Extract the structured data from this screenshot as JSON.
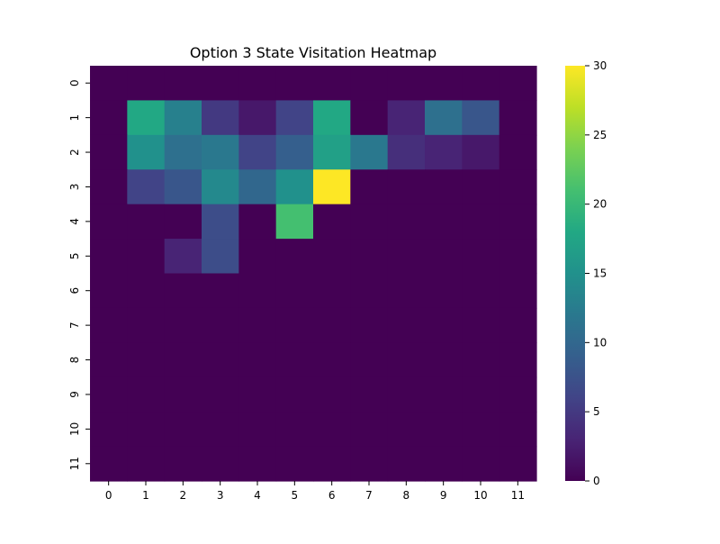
{
  "chart_data": {
    "type": "heatmap",
    "title": "Option 3 State Visitation Heatmap",
    "xlabel": "",
    "ylabel": "",
    "x_ticks": [
      "0",
      "1",
      "2",
      "3",
      "4",
      "5",
      "6",
      "7",
      "8",
      "9",
      "10",
      "11"
    ],
    "y_ticks": [
      "0",
      "1",
      "2",
      "3",
      "4",
      "5",
      "6",
      "7",
      "8",
      "9",
      "10",
      "11"
    ],
    "matrix": [
      [
        0,
        0,
        0,
        0,
        0,
        0,
        0,
        0,
        0,
        0,
        0,
        0
      ],
      [
        0,
        18,
        13,
        5,
        2,
        6,
        18,
        0,
        3,
        11,
        8,
        0
      ],
      [
        0,
        15,
        11,
        12,
        6,
        9,
        17,
        12,
        4,
        3,
        2,
        0
      ],
      [
        0,
        6,
        8,
        14,
        10,
        15,
        30,
        0,
        0,
        0,
        0,
        0
      ],
      [
        0,
        0,
        0,
        7,
        0,
        21,
        0,
        0,
        0,
        0,
        0,
        0
      ],
      [
        0,
        0,
        3,
        7,
        0,
        0,
        0,
        0,
        0,
        0,
        0,
        0
      ],
      [
        0,
        0,
        0,
        0,
        0,
        0,
        0,
        0,
        0,
        0,
        0,
        0
      ],
      [
        0,
        0,
        0,
        0,
        0,
        0,
        0,
        0,
        0,
        0,
        0,
        0
      ],
      [
        0,
        0,
        0,
        0,
        0,
        0,
        0,
        0,
        0,
        0,
        0,
        0
      ],
      [
        0,
        0,
        0,
        0,
        0,
        0,
        0,
        0,
        0,
        0,
        0,
        0
      ],
      [
        0,
        0,
        0,
        0,
        0,
        0,
        0,
        0,
        0,
        0,
        0,
        0
      ],
      [
        0,
        0,
        0,
        0,
        0,
        0,
        0,
        0,
        0,
        0,
        0,
        0
      ]
    ],
    "colorbar": {
      "min": 0,
      "max": 30,
      "ticks": [
        0,
        5,
        10,
        15,
        20,
        25,
        30
      ],
      "colormap": "viridis"
    },
    "grid": false,
    "legend": "colorbar-right"
  }
}
